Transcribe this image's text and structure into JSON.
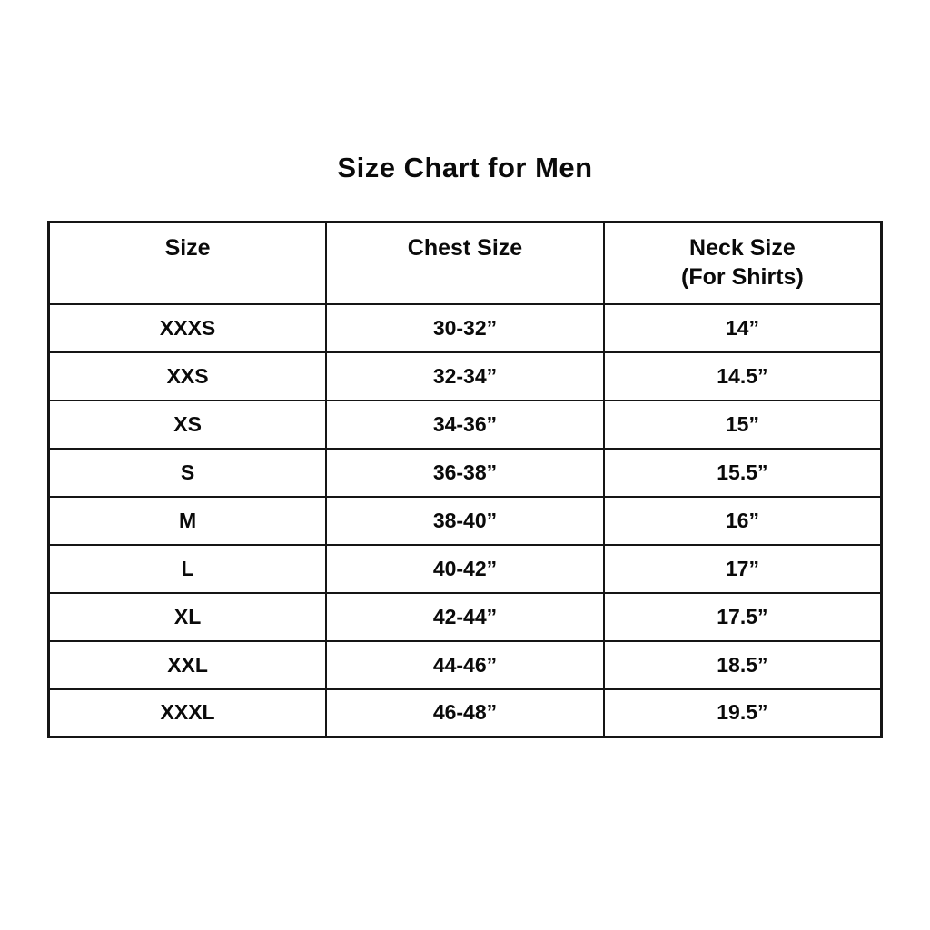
{
  "accent_colors": {
    "border": "#151515",
    "text": "#0a0a0a",
    "background": "#ffffff"
  },
  "chart_data": {
    "type": "table",
    "title": "Size Chart for Men",
    "columns": [
      "Size",
      "Chest Size",
      "Neck Size (For Shirts)"
    ],
    "header_display": {
      "col1": "Size",
      "col2": "Chest Size",
      "col3_line1": "Neck Size",
      "col3_line2": "(For Shirts)"
    },
    "rows": [
      [
        "XXXS",
        "30-32”",
        "14”"
      ],
      [
        "XXS",
        "32-34”",
        "14.5”"
      ],
      [
        "XS",
        "34-36”",
        "15”"
      ],
      [
        "S",
        "36-38”",
        "15.5”"
      ],
      [
        "M",
        "38-40”",
        "16”"
      ],
      [
        "L",
        "40-42”",
        "17”"
      ],
      [
        "XL",
        "42-44”",
        "17.5”"
      ],
      [
        "XXL",
        "44-46”",
        "18.5”"
      ],
      [
        "XXXL",
        "46-48”",
        "19.5”"
      ]
    ]
  }
}
